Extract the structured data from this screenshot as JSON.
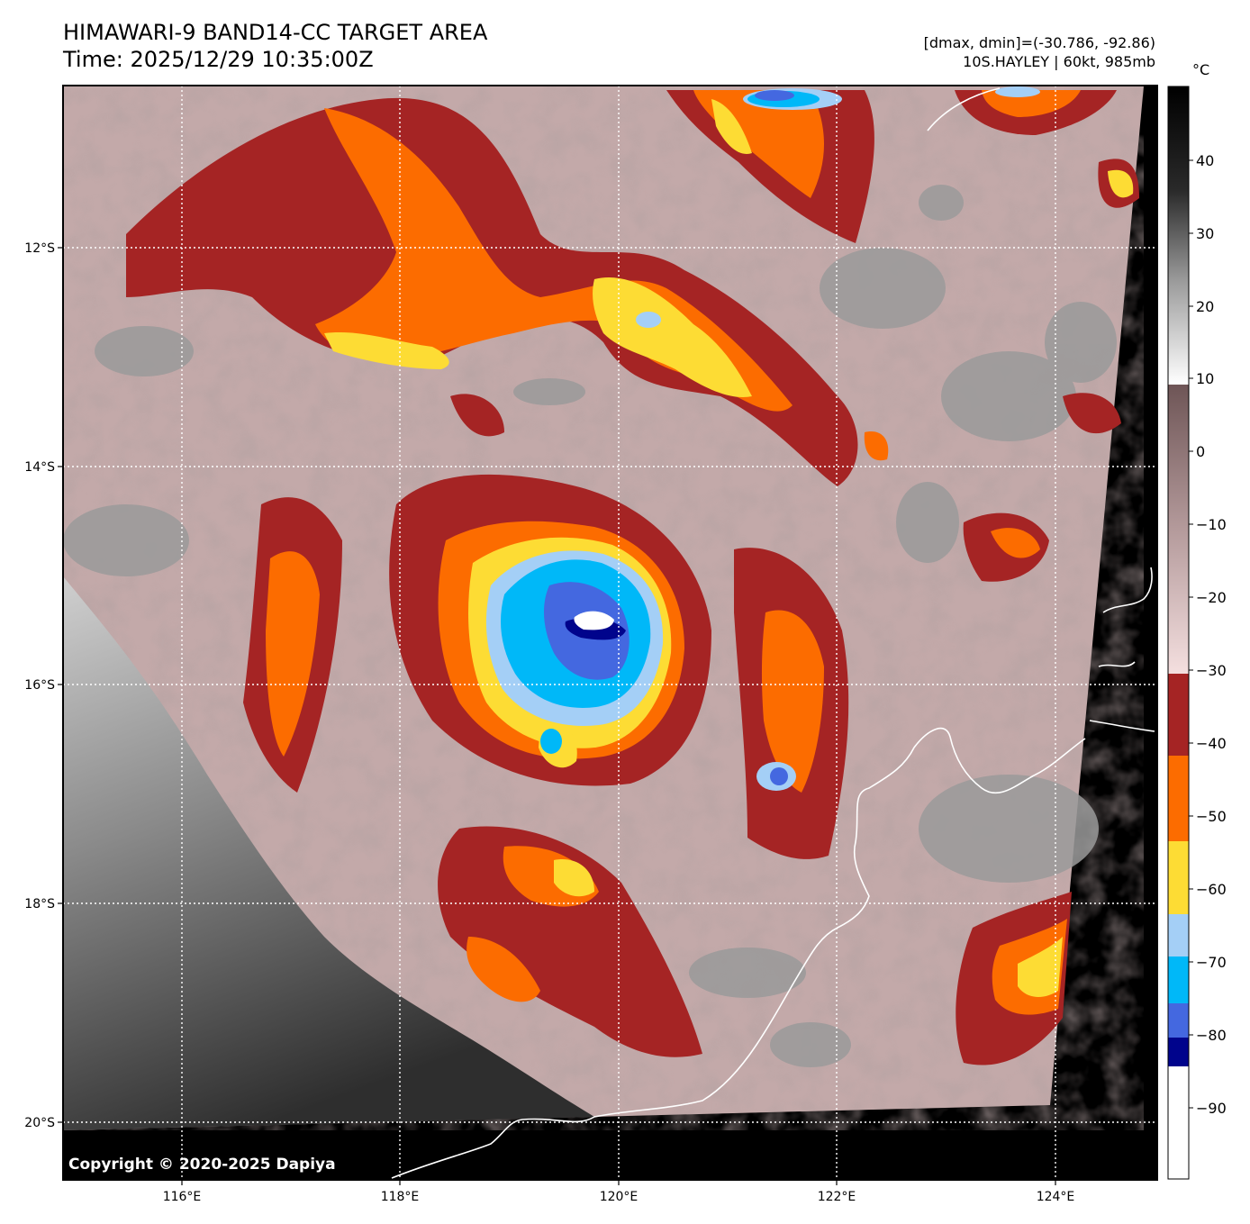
{
  "header": {
    "title_line1": "HIMAWARI-9 BAND14-CC TARGET AREA",
    "title_line2": "Time: 2025/12/29 10:35:00Z",
    "range_info": "[dmax, dmin]=(-30.786, -92.86)",
    "storm_info": "10S.HAYLEY | 60kt, 985mb"
  },
  "map": {
    "x_ticks": [
      "116°E",
      "118°E",
      "120°E",
      "122°E",
      "124°E"
    ],
    "y_ticks": [
      "12°S",
      "14°S",
      "16°S",
      "18°S",
      "20°S"
    ],
    "grid": "dotted white"
  },
  "colorbar": {
    "unit": "°C",
    "ticks": [
      "40",
      "30",
      "20",
      "10",
      "0",
      "−10",
      "−20",
      "−30",
      "−40",
      "−50",
      "−60",
      "−70",
      "−80",
      "−90"
    ],
    "colors": {
      "red": "#a52424",
      "orange": "#fc6c00",
      "yellow": "#fddc34",
      "light_blue": "#a4cff6",
      "sky_blue": "#00b8f8",
      "royal_blue": "#4468e0",
      "navy": "#00048c",
      "white": "#ffffff",
      "mauve": "#7e6566",
      "pale_pink": "#f0d6d6"
    }
  },
  "footer": {
    "copyright": "Copyright © 2020-2025 Dapiya"
  }
}
